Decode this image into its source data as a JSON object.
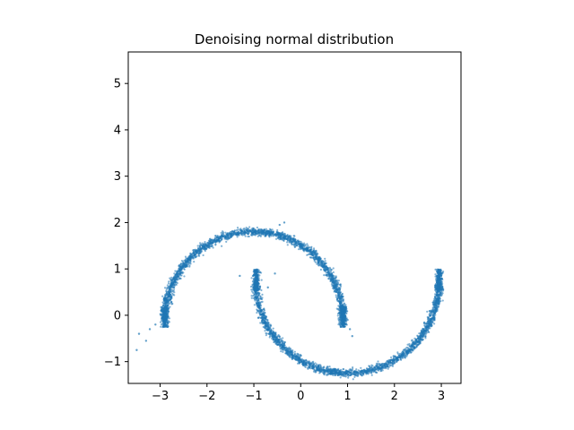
{
  "chart_data": {
    "type": "scatter",
    "title": "Denoising normal distribution",
    "xlabel": "",
    "ylabel": "",
    "xlim": [
      -3.68,
      3.42
    ],
    "ylim": [
      -1.47,
      5.68
    ],
    "xticks": [
      -3,
      -2,
      -1,
      0,
      1,
      2,
      3
    ],
    "xtick_labels": [
      "−3",
      "−2",
      "−1",
      "0",
      "1",
      "2",
      "3"
    ],
    "yticks": [
      -1,
      0,
      1,
      2,
      3,
      4,
      5
    ],
    "ytick_labels": [
      "−1",
      "0",
      "1",
      "2",
      "3",
      "4",
      "5"
    ],
    "grid": false,
    "legend": "none",
    "point_color": "#1f77b4",
    "series": [
      {
        "structure": "two interleaving half-circle arcs (two-moons)",
        "upper_arc": {
          "center": [
            -1,
            -0.1
          ],
          "radius": 1.9,
          "angle_range_deg": [
            0,
            180
          ]
        },
        "lower_arc": {
          "center": [
            1,
            0.7
          ],
          "radius": 1.95,
          "angle_range_deg": [
            180,
            360
          ]
        },
        "points": [
          [
            -3.5,
            -0.75
          ],
          [
            -3.45,
            -0.4
          ],
          [
            -3.3,
            -0.55
          ],
          [
            -3.22,
            -0.3
          ],
          [
            -3.1,
            -0.2
          ],
          [
            -2.98,
            0.1
          ],
          [
            -2.9,
            0.35
          ],
          [
            -2.78,
            0.6
          ],
          [
            -2.62,
            0.85
          ],
          [
            -2.45,
            1.05
          ],
          [
            -2.25,
            1.25
          ],
          [
            -2.05,
            1.42
          ],
          [
            -1.82,
            1.58
          ],
          [
            -1.6,
            1.7
          ],
          [
            -1.35,
            1.77
          ],
          [
            -1.1,
            1.8
          ],
          [
            -0.85,
            1.8
          ],
          [
            -0.6,
            1.76
          ],
          [
            -0.35,
            1.7
          ],
          [
            -0.1,
            1.58
          ],
          [
            0.15,
            1.43
          ],
          [
            0.38,
            1.24
          ],
          [
            0.58,
            1.02
          ],
          [
            0.75,
            0.75
          ],
          [
            0.88,
            0.45
          ],
          [
            0.96,
            0.15
          ],
          [
            1.0,
            -0.1
          ],
          [
            1.05,
            -0.3
          ],
          [
            1.1,
            -0.45
          ],
          [
            -1.3,
            0.85
          ],
          [
            -0.55,
            0.9
          ],
          [
            -0.7,
            0.6
          ],
          [
            -0.35,
            2.0
          ],
          [
            -0.45,
            1.95
          ],
          [
            -1.02,
            0.85
          ],
          [
            -1.0,
            0.6
          ],
          [
            -0.98,
            0.35
          ],
          [
            -0.92,
            0.1
          ],
          [
            -0.82,
            -0.15
          ],
          [
            -0.68,
            -0.4
          ],
          [
            -0.5,
            -0.63
          ],
          [
            -0.28,
            -0.85
          ],
          [
            -0.02,
            -1.02
          ],
          [
            0.25,
            -1.14
          ],
          [
            0.55,
            -1.21
          ],
          [
            0.85,
            -1.24
          ],
          [
            1.15,
            -1.23
          ],
          [
            1.45,
            -1.19
          ],
          [
            1.75,
            -1.1
          ],
          [
            2.05,
            -0.96
          ],
          [
            2.32,
            -0.76
          ],
          [
            2.55,
            -0.52
          ],
          [
            2.75,
            -0.22
          ],
          [
            2.88,
            0.08
          ],
          [
            2.96,
            0.38
          ],
          [
            3.0,
            0.65
          ],
          [
            3.0,
            0.8
          ]
        ]
      }
    ]
  }
}
